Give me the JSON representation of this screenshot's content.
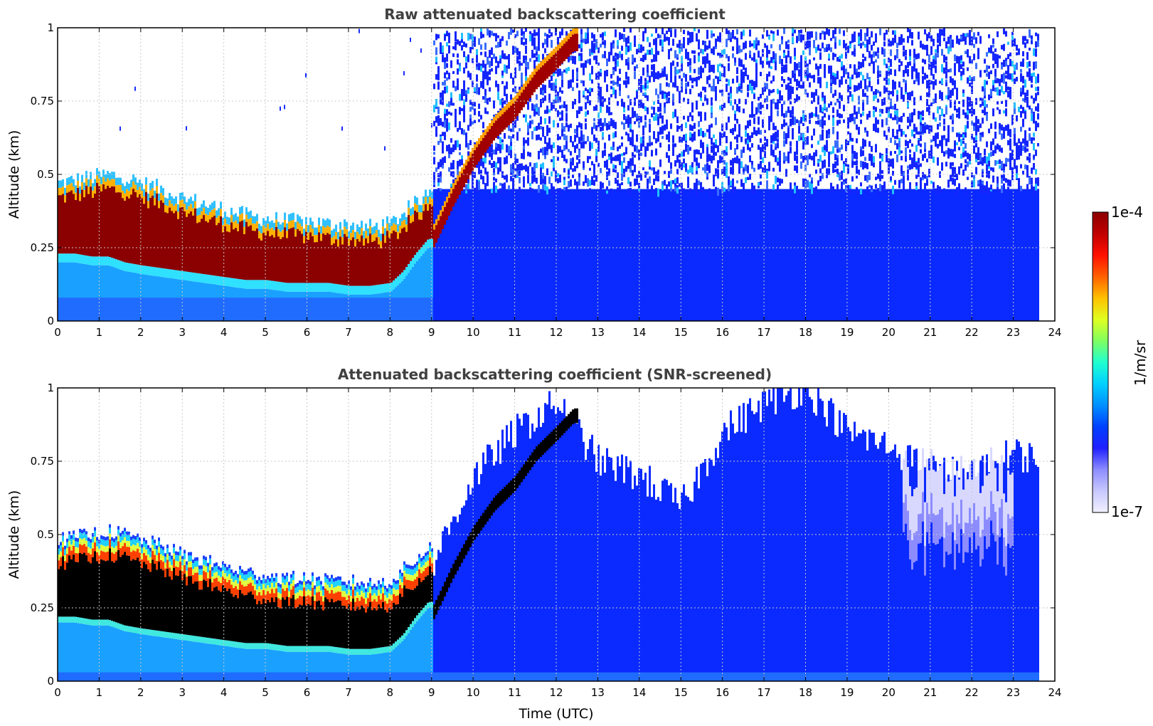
{
  "chart_data": [
    {
      "type": "heatmap",
      "title": "Raw attenuated backscattering coefficient",
      "xlabel": "",
      "ylabel": "Altitude (km)",
      "xlim": [
        0,
        24
      ],
      "ylim": [
        0,
        1
      ],
      "xticks": [
        0,
        1,
        2,
        3,
        4,
        5,
        6,
        7,
        8,
        9,
        10,
        11,
        12,
        13,
        14,
        15,
        16,
        17,
        18,
        19,
        20,
        21,
        22,
        23,
        24
      ],
      "xtick_labels": [
        "0",
        "1",
        "2",
        "3",
        "4",
        "5",
        "6",
        "7",
        "8",
        "9",
        "10",
        "11",
        "12",
        "13",
        "14",
        "15",
        "16",
        "17",
        "18",
        "19",
        "20",
        "21",
        "22",
        "23",
        "24"
      ],
      "yticks": [
        0,
        0.25,
        0.5,
        0.75,
        1
      ],
      "ytick_labels": [
        "0",
        "0.25",
        "0.5",
        "0.75",
        "1"
      ],
      "data_end_time": 23.65,
      "layer_top_km": [
        0.42,
        0.43,
        0.44,
        0.45,
        0.44,
        0.42,
        0.4,
        0.37,
        0.35,
        0.33,
        0.31,
        0.3,
        0.29,
        0.29,
        0.28,
        0.28,
        0.27,
        0.28,
        0.32,
        0.35,
        0.4,
        0.38
      ],
      "layer_bottom_km": [
        0.2,
        0.2,
        0.19,
        0.19,
        0.17,
        0.16,
        0.15,
        0.14,
        0.13,
        0.12,
        0.11,
        0.11,
        0.1,
        0.1,
        0.1,
        0.09,
        0.09,
        0.1,
        0.14,
        0.2,
        0.25,
        0.25
      ],
      "layer_time_h": [
        0,
        0.4,
        0.8,
        1.2,
        1.6,
        2.0,
        2.5,
        3.0,
        3.5,
        4.0,
        4.5,
        5.0,
        5.5,
        6.0,
        6.5,
        7.0,
        7.5,
        8.0,
        8.3,
        8.6,
        8.9,
        9.0
      ],
      "rising_layer_time_h": [
        9.0,
        9.5,
        10.0,
        10.5,
        11.0,
        11.5,
        12.0,
        12.4
      ],
      "rising_layer_alt_km": [
        0.3,
        0.45,
        0.58,
        0.68,
        0.75,
        0.85,
        0.92,
        0.98
      ],
      "grid": true
    },
    {
      "type": "heatmap",
      "title": "Attenuated backscattering coefficient (SNR-screened)",
      "xlabel": "Time (UTC)",
      "ylabel": "Altitude (km)",
      "xlim": [
        0,
        24
      ],
      "ylim": [
        0,
        1
      ],
      "xticks": [
        0,
        1,
        2,
        3,
        4,
        5,
        6,
        7,
        8,
        9,
        10,
        11,
        12,
        13,
        14,
        15,
        16,
        17,
        18,
        19,
        20,
        21,
        22,
        23,
        24
      ],
      "xtick_labels": [
        "0",
        "1",
        "2",
        "3",
        "4",
        "5",
        "6",
        "7",
        "8",
        "9",
        "10",
        "11",
        "12",
        "13",
        "14",
        "15",
        "16",
        "17",
        "18",
        "19",
        "20",
        "21",
        "22",
        "23",
        "24"
      ],
      "yticks": [
        0,
        0.25,
        0.5,
        0.75,
        1
      ],
      "ytick_labels": [
        "0",
        "0.25",
        "0.5",
        "0.75",
        "1"
      ],
      "data_end_time": 23.65,
      "screened_top_time_h": [
        9,
        10,
        11,
        12,
        13,
        14,
        15,
        16,
        17,
        18,
        19,
        20,
        21,
        22,
        23,
        23.65
      ],
      "screened_top_alt_km": [
        0.4,
        0.7,
        0.85,
        0.95,
        0.75,
        0.7,
        0.6,
        0.85,
        0.95,
        1.0,
        0.85,
        0.8,
        0.72,
        0.7,
        0.78,
        0.75
      ],
      "grid": true
    }
  ],
  "colorbar": {
    "label": "1/m/sr",
    "max_label": "1e-4",
    "min_label": "1e-7",
    "colors": [
      "#f0f0ff",
      "#c8c8ff",
      "#8c8cff",
      "#2020ff",
      "#0040ff",
      "#0090ff",
      "#00d0ff",
      "#20ffd0",
      "#80ff60",
      "#e0ff20",
      "#ffc000",
      "#ff6000",
      "#ff1000",
      "#c00000",
      "#8b0000"
    ]
  }
}
